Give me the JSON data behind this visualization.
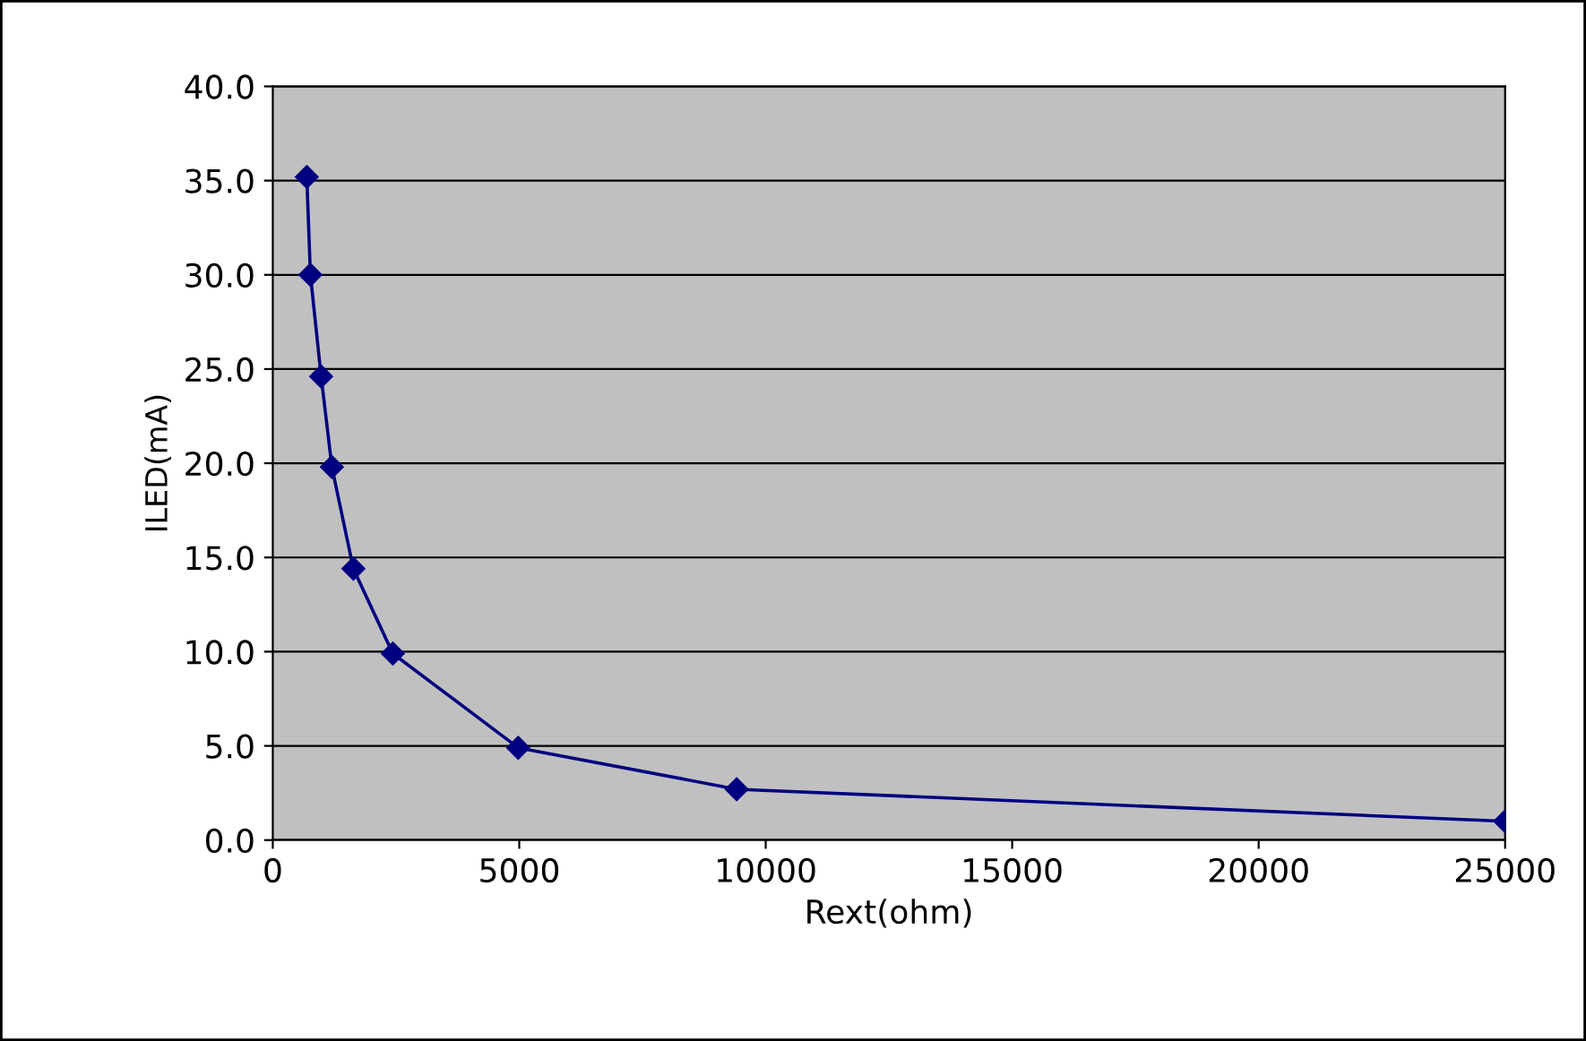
{
  "chart_data": {
    "type": "line",
    "xlabel": "Rext(ohm)",
    "ylabel": "ILED(mA)",
    "x": [
      690,
      763,
      981,
      1199,
      1635,
      2435,
      4978,
      9411,
      25000
    ],
    "series": [
      {
        "color": "#000080",
        "values": [
          35.2,
          30.0,
          24.6,
          19.8,
          14.4,
          9.9,
          4.9,
          2.7,
          1.0
        ]
      }
    ],
    "xlim": [
      0,
      25000
    ],
    "xticks": [
      0,
      5000,
      10000,
      15000,
      20000,
      25000
    ],
    "ylim": [
      0,
      40
    ],
    "yticks": [
      {
        "value": 0,
        "label": "0.0"
      },
      {
        "value": 5,
        "label": "5.0"
      },
      {
        "value": 10,
        "label": "10.0"
      },
      {
        "value": 15,
        "label": "15.0"
      },
      {
        "value": 20,
        "label": "20.0"
      },
      {
        "value": 25,
        "label": "25.0"
      },
      {
        "value": 30,
        "label": "30.0"
      },
      {
        "value": 35,
        "label": "35.0"
      },
      {
        "value": 40,
        "label": "40.0"
      }
    ],
    "grid": "y",
    "marker": "diamond",
    "line_style": "solid",
    "legend": false
  }
}
